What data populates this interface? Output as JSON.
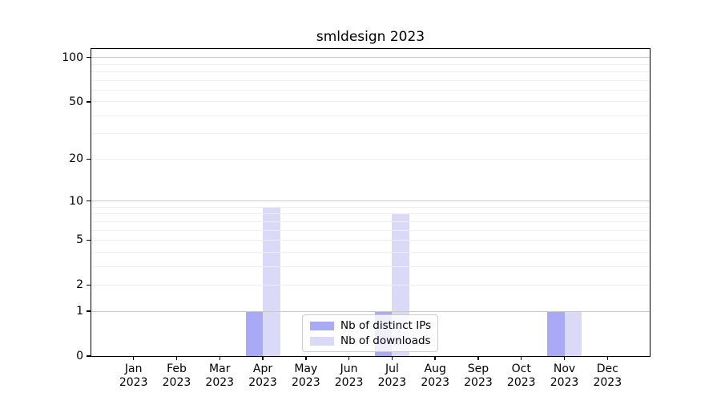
{
  "chart_data": {
    "type": "bar",
    "title": "smldesign 2023",
    "categories": [
      "Jan",
      "Feb",
      "Mar",
      "Apr",
      "May",
      "Jun",
      "Jul",
      "Aug",
      "Sep",
      "Oct",
      "Nov",
      "Dec"
    ],
    "year_label": "2023",
    "series": [
      {
        "name": "Nb of distinct IPs",
        "color": "#a9a9f6",
        "values": [
          0,
          0,
          0,
          1,
          0,
          0,
          1,
          0,
          0,
          0,
          1,
          0
        ]
      },
      {
        "name": "Nb of downloads",
        "color": "#dadaf8",
        "values": [
          0,
          0,
          0,
          9,
          0,
          0,
          8,
          0,
          0,
          0,
          1,
          0
        ]
      }
    ],
    "xlabel": "",
    "ylabel": "",
    "yscale": "log1p",
    "ylim": [
      0,
      100
    ],
    "yticks": [
      0,
      1,
      2,
      5,
      10,
      20,
      50,
      100
    ],
    "minor_gridlines": [
      2,
      3,
      4,
      5,
      6,
      7,
      8,
      9,
      20,
      30,
      40,
      50,
      60,
      70,
      80,
      90
    ],
    "major_gridlines": [
      1,
      10,
      100
    ],
    "grid_color_minor": "#f0f0f0",
    "grid_color_major": "#c9c9c9",
    "grid": "on",
    "legend_position": "lower center",
    "spine_color": "#000000"
  }
}
